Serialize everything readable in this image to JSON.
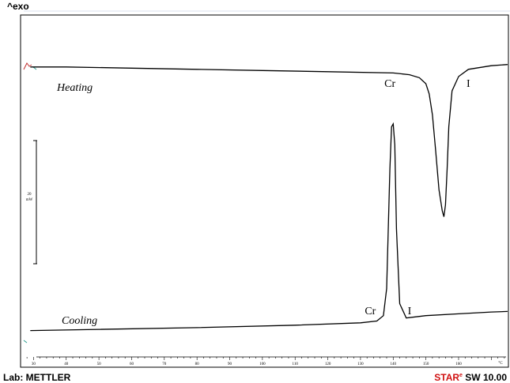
{
  "header": {
    "exo_label": "^exo"
  },
  "footer": {
    "lab_label": "Lab: METTLER",
    "software_brand": "STAR",
    "software_brand_mark": "e",
    "software_version": "SW 10.00"
  },
  "colors": {
    "curve": "#000000",
    "brand_red": "#d01010",
    "marker_teal": "#2a9d8f",
    "marker_red": "#c03030"
  },
  "chart_data": {
    "type": "line",
    "x_unit": "°C",
    "xlim": [
      27,
      175
    ],
    "x_ticks": [
      30,
      40,
      50,
      60,
      70,
      80,
      90,
      100,
      110,
      120,
      130,
      140,
      150,
      160
    ],
    "x_tick_labels": [
      "30",
      "40",
      "50",
      "60",
      "70",
      "80",
      "90",
      "100",
      "110",
      "120",
      "130",
      "140",
      "150",
      "160"
    ],
    "scale_bar": {
      "value": "20",
      "unit": "mW"
    },
    "series": [
      {
        "name": "Heating",
        "x": [
          29,
          40,
          60,
          80,
          100,
          120,
          140,
          145,
          148,
          150,
          151,
          152,
          153,
          154,
          155,
          155.5,
          156,
          156.5,
          157,
          158,
          160,
          163,
          170,
          175
        ],
        "y": [
          1.0,
          1.0,
          0.8,
          0.6,
          0.4,
          0.2,
          0.0,
          -0.3,
          -0.8,
          -1.8,
          -3.5,
          -7.0,
          -13.0,
          -19.5,
          -23.0,
          -24.0,
          -22.0,
          -16.0,
          -9.0,
          -3.0,
          -0.6,
          0.6,
          1.2,
          1.4
        ],
        "labels": [
          {
            "text": "Cr",
            "x": 139
          },
          {
            "text": "I",
            "x": 163
          }
        ]
      },
      {
        "name": "Cooling",
        "x": [
          29,
          50,
          80,
          110,
          130,
          135,
          137,
          138,
          139,
          139.5,
          140,
          140.5,
          141,
          142,
          144,
          150,
          160,
          170,
          175
        ],
        "y": [
          -43.0,
          -42.8,
          -42.5,
          -42.1,
          -41.7,
          -41.4,
          -40.5,
          -36.0,
          -16.0,
          -9.0,
          -8.5,
          -12.0,
          -26.0,
          -38.5,
          -40.9,
          -40.5,
          -40.2,
          -39.9,
          -39.8
        ],
        "labels": [
          {
            "text": "Cr",
            "x": 133
          },
          {
            "text": "I",
            "x": 145
          }
        ]
      }
    ],
    "ylim": [
      -47,
      4
    ]
  }
}
